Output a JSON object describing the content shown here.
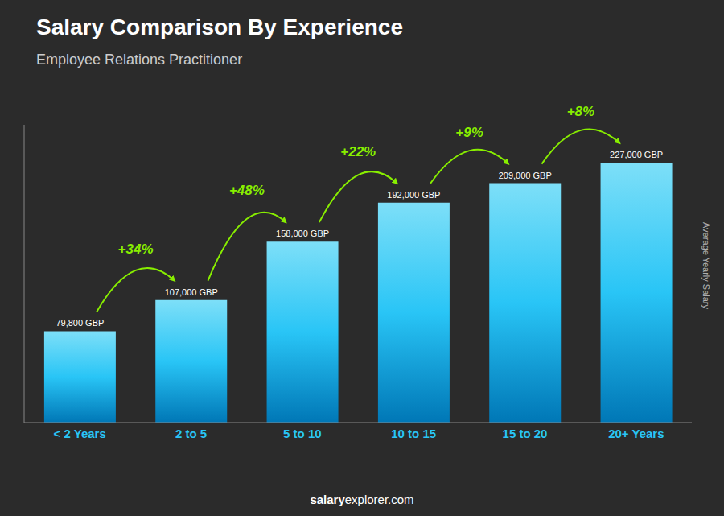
{
  "chart_data": {
    "type": "bar",
    "title": "Salary Comparison By Experience",
    "subtitle": "Employee Relations Practitioner",
    "ylabel": "Average Yearly Salary",
    "categories": [
      "< 2 Years",
      "2 to 5",
      "5 to 10",
      "10 to 15",
      "15 to 20",
      "20+ Years"
    ],
    "values": [
      79800,
      107000,
      158000,
      192000,
      209000,
      227000
    ],
    "value_labels": [
      "79,800 GBP",
      "107,000 GBP",
      "158,000 GBP",
      "192,000 GBP",
      "209,000 GBP",
      "227,000 GBP"
    ],
    "data_labels": true,
    "color": "#29C5F6",
    "ylim": [
      0,
      260000
    ],
    "tick_labels": "x",
    "grid": false,
    "annotations": [
      {
        "text": "+34%",
        "color": "#88ee00"
      },
      {
        "text": "+48%",
        "color": "#88ee00"
      },
      {
        "text": "+22%",
        "color": "#88ee00"
      },
      {
        "text": "+9%",
        "color": "#88ee00"
      },
      {
        "text": "+8%",
        "color": "#88ee00"
      }
    ],
    "footer": [
      "salary",
      "explorer.com"
    ]
  }
}
